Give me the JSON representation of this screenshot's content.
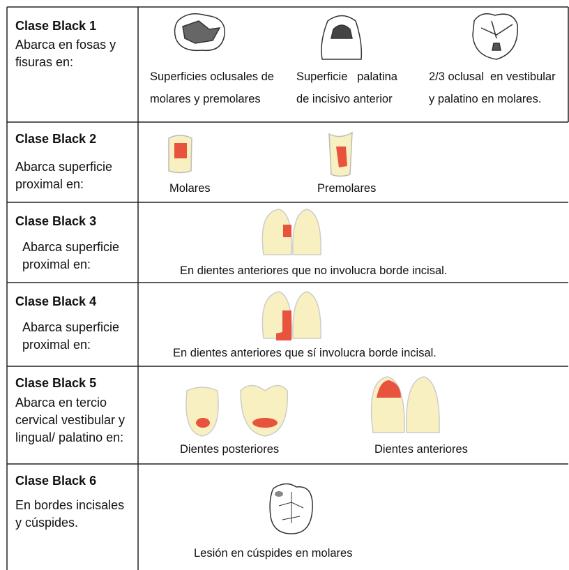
{
  "rows": [
    {
      "title": "Clase Black 1",
      "description": [
        "Abarca en fosas y",
        "fisuras en:"
      ],
      "items": [
        {
          "label": [
            "Superficies oclusales de",
            "molares y premolares"
          ]
        },
        {
          "label": [
            "Superficie   palatina",
            "de incisivo anterior"
          ]
        },
        {
          "label": [
            "2/3 oclusal  en vestibular",
            "y palatino en molares."
          ]
        }
      ]
    },
    {
      "title": "Clase Black 2",
      "description": [
        "Abarca superficie",
        "proximal en:"
      ],
      "items": [
        {
          "label": [
            "Molares"
          ]
        },
        {
          "label": [
            "Premolares"
          ]
        }
      ]
    },
    {
      "title": "Clase Black 3",
      "description": [
        "Abarca superficie",
        "proximal en:"
      ],
      "items": [
        {
          "label": [
            "En dientes anteriores que no involucra borde incisal."
          ]
        }
      ]
    },
    {
      "title": "Clase Black 4",
      "description": [
        "Abarca superficie",
        "proximal en:"
      ],
      "items": [
        {
          "label": [
            "En dientes anteriores que sí involucra borde incisal."
          ]
        }
      ]
    },
    {
      "title": "Clase Black 5",
      "description": [
        "Abarca en tercio",
        "cervical vestibular y",
        "lingual/ palatino en:"
      ],
      "items": [
        {
          "label": [
            "Dientes posteriores"
          ]
        },
        {
          "label": [
            "Dientes anteriores"
          ]
        }
      ]
    },
    {
      "title": "Clase Black 6",
      "description": [
        "En bordes incisales",
        "y cúspides."
      ],
      "items": [
        {
          "label": [
            "Lesión en cúspides en molares"
          ]
        }
      ]
    }
  ]
}
